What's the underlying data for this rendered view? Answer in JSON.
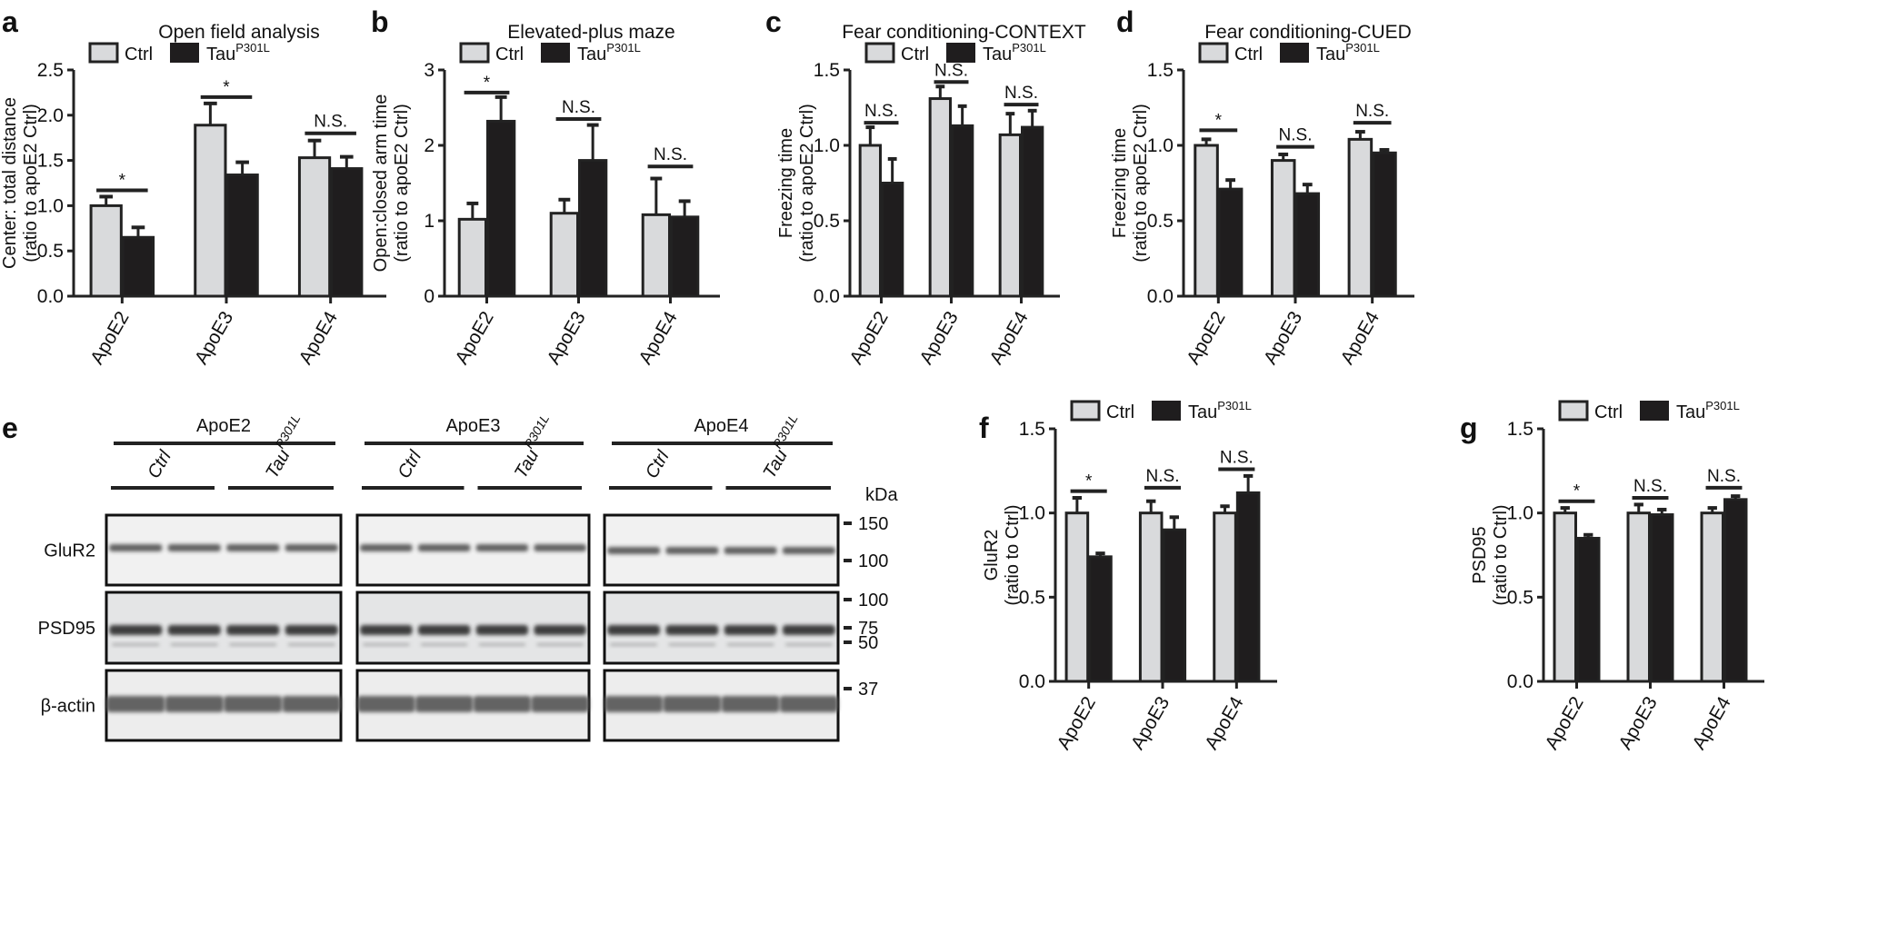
{
  "colors": {
    "ctrl": "#d9dadc",
    "tau": "#1f1d1e",
    "stroke": "#222222"
  },
  "legend": {
    "ctrl_label": "Ctrl",
    "tau_label": "Tau",
    "tau_superscript": "P301L"
  },
  "chart_data": [
    {
      "panel": "a",
      "type": "bar",
      "title": "Open field analysis",
      "ylabel": [
        "Center: total distance",
        "(ratio to apoE2 Ctrl)"
      ],
      "categories": [
        "ApoE2",
        "ApoE3",
        "ApoE4"
      ],
      "ylim": [
        0,
        2.5
      ],
      "yticks": [
        "0.0",
        "0.5",
        "1.0",
        "1.5",
        "2.0",
        "2.5"
      ],
      "ytick_values": [
        0,
        0.5,
        1.0,
        1.5,
        2.0,
        2.5
      ],
      "series": [
        {
          "name": "Ctrl",
          "values": [
            1.0,
            1.89,
            1.53
          ],
          "errors": [
            0.1,
            0.24,
            0.19
          ]
        },
        {
          "name": "Tau",
          "name_superscript": "P301L",
          "values": [
            0.65,
            1.34,
            1.41
          ],
          "errors": [
            0.11,
            0.14,
            0.13
          ]
        }
      ],
      "significance": [
        {
          "label": "*",
          "y": 1.17
        },
        {
          "label": "*",
          "y": 2.2
        },
        {
          "label": "N.S.",
          "y": 1.8
        }
      ]
    },
    {
      "panel": "b",
      "type": "bar",
      "title": "Elevated-plus maze",
      "ylabel": [
        "Open:closed arm time",
        "(ratio to apoE2 Ctrl)"
      ],
      "categories": [
        "ApoE2",
        "ApoE3",
        "ApoE4"
      ],
      "ylim": [
        0,
        3
      ],
      "yticks": [
        "0",
        "1",
        "2",
        "3"
      ],
      "ytick_values": [
        0,
        1,
        2,
        3
      ],
      "series": [
        {
          "name": "Ctrl",
          "values": [
            1.02,
            1.1,
            1.08
          ],
          "errors": [
            0.21,
            0.18,
            0.48
          ]
        },
        {
          "name": "Tau",
          "name_superscript": "P301L",
          "values": [
            2.32,
            1.8,
            1.05
          ],
          "errors": [
            0.32,
            0.47,
            0.21
          ]
        }
      ],
      "significance": [
        {
          "label": "*",
          "y": 2.7
        },
        {
          "label": "N.S.",
          "y": 2.35
        },
        {
          "label": "N.S.",
          "y": 1.72
        }
      ]
    },
    {
      "panel": "c",
      "type": "bar",
      "title": "Fear conditioning-CONTEXT",
      "ylabel": [
        "Freezing time",
        "(ratio to apoE2 Ctrl)"
      ],
      "categories": [
        "ApoE2",
        "ApoE3",
        "ApoE4"
      ],
      "ylim": [
        0,
        1.5
      ],
      "yticks": [
        "0.0",
        "0.5",
        "1.0",
        "1.5"
      ],
      "ytick_values": [
        0,
        0.5,
        1.0,
        1.5
      ],
      "series": [
        {
          "name": "Ctrl",
          "values": [
            1.0,
            1.31,
            1.07
          ],
          "errors": [
            0.12,
            0.08,
            0.14
          ]
        },
        {
          "name": "Tau",
          "name_superscript": "P301L",
          "values": [
            0.75,
            1.13,
            1.12
          ],
          "errors": [
            0.16,
            0.13,
            0.11
          ]
        }
      ],
      "significance": [
        {
          "label": "N.S.",
          "y": 1.15
        },
        {
          "label": "N.S.",
          "y": 1.42
        },
        {
          "label": "N.S.",
          "y": 1.27
        }
      ]
    },
    {
      "panel": "d",
      "type": "bar",
      "title": "Fear conditioning-CUED",
      "ylabel": [
        "Freezing time",
        "(ratio to apoE2 Ctrl)"
      ],
      "categories": [
        "ApoE2",
        "ApoE3",
        "ApoE4"
      ],
      "ylim": [
        0,
        1.5
      ],
      "yticks": [
        "0.0",
        "0.5",
        "1.0",
        "1.5"
      ],
      "ytick_values": [
        0,
        0.5,
        1.0,
        1.5
      ],
      "series": [
        {
          "name": "Ctrl",
          "values": [
            1.0,
            0.9,
            1.04
          ],
          "errors": [
            0.04,
            0.04,
            0.05
          ]
        },
        {
          "name": "Tau",
          "name_superscript": "P301L",
          "values": [
            0.71,
            0.68,
            0.95
          ],
          "errors": [
            0.06,
            0.06,
            0.02
          ]
        }
      ],
      "significance": [
        {
          "label": "*",
          "y": 1.1
        },
        {
          "label": "N.S.",
          "y": 0.99
        },
        {
          "label": "N.S.",
          "y": 1.15
        }
      ]
    },
    {
      "panel": "f",
      "type": "bar",
      "title": "",
      "ylabel": [
        "GluR2",
        "(ratio to Ctrl)"
      ],
      "categories": [
        "ApoE2",
        "ApoE3",
        "ApoE4"
      ],
      "ylim": [
        0,
        1.5
      ],
      "yticks": [
        "0.0",
        "0.5",
        "1.0",
        "1.5"
      ],
      "ytick_values": [
        0,
        0.5,
        1.0,
        1.5
      ],
      "series": [
        {
          "name": "Ctrl",
          "values": [
            1.0,
            1.0,
            1.0
          ],
          "errors": [
            0.09,
            0.07,
            0.04
          ]
        },
        {
          "name": "Tau",
          "name_superscript": "P301L",
          "values": [
            0.74,
            0.9,
            1.12
          ],
          "errors": [
            0.02,
            0.075,
            0.1
          ]
        }
      ],
      "significance": [
        {
          "label": "*",
          "y": 1.13
        },
        {
          "label": "N.S.",
          "y": 1.15
        },
        {
          "label": "N.S.",
          "y": 1.26
        }
      ]
    },
    {
      "panel": "g",
      "type": "bar",
      "title": "",
      "ylabel": [
        "PSD95",
        "(ratio to Ctrl)"
      ],
      "categories": [
        "ApoE2",
        "ApoE3",
        "ApoE4"
      ],
      "ylim": [
        0,
        1.5
      ],
      "yticks": [
        "0.0",
        "0.5",
        "1.0",
        "1.5"
      ],
      "ytick_values": [
        0,
        0.5,
        1.0,
        1.5
      ],
      "series": [
        {
          "name": "Ctrl",
          "values": [
            1.0,
            1.0,
            1.0
          ],
          "errors": [
            0.03,
            0.05,
            0.03
          ]
        },
        {
          "name": "Tau",
          "name_superscript": "P301L",
          "values": [
            0.85,
            0.99,
            1.08
          ],
          "errors": [
            0.02,
            0.03,
            0.02
          ]
        }
      ],
      "significance": [
        {
          "label": "*",
          "y": 1.07
        },
        {
          "label": "N.S.",
          "y": 1.09
        },
        {
          "label": "N.S.",
          "y": 1.15
        }
      ]
    }
  ],
  "blot": {
    "panel": "e",
    "groups": [
      "ApoE2",
      "ApoE3",
      "ApoE4"
    ],
    "conditions": [
      "Ctrl",
      "Tau"
    ],
    "condition_superscript": "P301L",
    "rows": [
      "GluR2",
      "PSD95",
      "β-actin"
    ],
    "kda_label": "kDa",
    "markers": [
      "150",
      "100",
      "100",
      "75",
      "50",
      "37"
    ]
  }
}
